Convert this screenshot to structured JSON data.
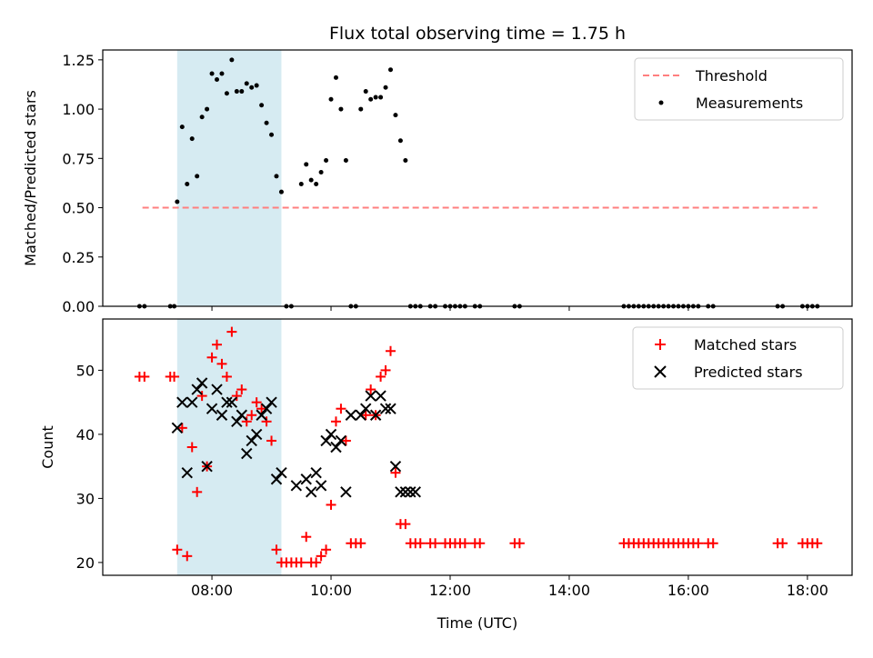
{
  "chart_data": [
    {
      "type": "scatter",
      "title": "Flux total observing time = 1.75 h",
      "xlabel": "",
      "ylabel": "Matched/Predicted stars",
      "xlim": [
        "06:10",
        "18:45"
      ],
      "ylim": [
        0,
        1.3
      ],
      "yticks": [
        "0.00",
        "0.25",
        "0.50",
        "0.75",
        "1.00",
        "1.25"
      ],
      "xticks": [
        "08:00",
        "10:00",
        "12:00",
        "14:00",
        "16:00",
        "18:00"
      ],
      "shaded_region": {
        "start": "07:25",
        "end": "09:10",
        "color": "#add8e6"
      },
      "legend_position": "top-right",
      "threshold": {
        "name": "Threshold",
        "value": 0.5,
        "x_start": "06:50",
        "x_end": "18:10",
        "color": "#ff7f7f"
      },
      "series": [
        {
          "name": "Measurements",
          "color": "#000000",
          "x": [
            "06:47",
            "06:52",
            "07:18",
            "07:22",
            "07:25",
            "07:30",
            "07:35",
            "07:40",
            "07:45",
            "07:50",
            "07:55",
            "08:00",
            "08:05",
            "08:10",
            "08:15",
            "08:20",
            "08:25",
            "08:30",
            "08:35",
            "08:40",
            "08:45",
            "08:50",
            "08:55",
            "09:00",
            "09:05",
            "09:10",
            "09:15",
            "09:20",
            "09:30",
            "09:35",
            "09:40",
            "09:45",
            "09:50",
            "09:55",
            "10:00",
            "10:05",
            "10:10",
            "10:15",
            "10:20",
            "10:25",
            "10:30",
            "10:35",
            "10:40",
            "10:45",
            "10:50",
            "10:55",
            "11:00",
            "11:05",
            "11:10",
            "11:15",
            "11:20",
            "11:25",
            "11:30",
            "11:40",
            "11:45",
            "11:55",
            "12:00",
            "12:05",
            "12:10",
            "12:15",
            "12:25",
            "12:30",
            "13:05",
            "13:10",
            "14:55",
            "15:00",
            "15:05",
            "15:10",
            "15:15",
            "15:20",
            "15:25",
            "15:30",
            "15:35",
            "15:40",
            "15:45",
            "15:50",
            "15:55",
            "16:00",
            "16:05",
            "16:10",
            "16:20",
            "16:25",
            "17:30",
            "17:35",
            "17:55",
            "18:00",
            "18:05",
            "18:10"
          ],
          "y": [
            0,
            0,
            0,
            0,
            0.53,
            0.91,
            0.62,
            0.85,
            0.66,
            0.96,
            1.0,
            1.18,
            1.15,
            1.18,
            1.08,
            1.25,
            1.09,
            1.09,
            1.13,
            1.11,
            1.12,
            1.02,
            0.93,
            0.87,
            0.66,
            0.58,
            0,
            0,
            0.62,
            0.72,
            0.64,
            0.62,
            0.68,
            0.74,
            1.05,
            1.16,
            1.0,
            0.74,
            0,
            0,
            1.0,
            1.09,
            1.05,
            1.06,
            1.06,
            1.11,
            1.2,
            0.97,
            0.84,
            0.74,
            0,
            0,
            0,
            0,
            0,
            0,
            0,
            0,
            0,
            0,
            0,
            0,
            0,
            0,
            0,
            0,
            0,
            0,
            0,
            0,
            0,
            0,
            0,
            0,
            0,
            0,
            0,
            0,
            0,
            0,
            0,
            0,
            0,
            0,
            0,
            0,
            0,
            0
          ]
        }
      ]
    },
    {
      "type": "scatter",
      "title": "",
      "xlabel": "Time (UTC)",
      "ylabel": "Count",
      "xlim": [
        "06:10",
        "18:45"
      ],
      "ylim": [
        18,
        58
      ],
      "yticks": [
        "20",
        "30",
        "40",
        "50"
      ],
      "xticks": [
        "08:00",
        "10:00",
        "12:00",
        "14:00",
        "16:00",
        "18:00"
      ],
      "shaded_region": {
        "start": "07:25",
        "end": "09:10",
        "color": "#add8e6"
      },
      "legend_position": "top-right",
      "series": [
        {
          "name": "Matched stars",
          "marker": "plus",
          "color": "#ff0000",
          "x": [
            "06:47",
            "06:52",
            "07:18",
            "07:22",
            "07:25",
            "07:30",
            "07:35",
            "07:40",
            "07:45",
            "07:50",
            "07:55",
            "08:00",
            "08:05",
            "08:10",
            "08:15",
            "08:20",
            "08:25",
            "08:30",
            "08:35",
            "08:40",
            "08:45",
            "08:50",
            "08:55",
            "09:00",
            "09:05",
            "09:10",
            "09:15",
            "09:20",
            "09:25",
            "09:30",
            "09:35",
            "09:40",
            "09:45",
            "09:50",
            "09:55",
            "10:00",
            "10:05",
            "10:10",
            "10:15",
            "10:20",
            "10:25",
            "10:30",
            "10:35",
            "10:40",
            "10:45",
            "10:50",
            "10:55",
            "11:00",
            "11:05",
            "11:10",
            "11:15",
            "11:20",
            "11:25",
            "11:30",
            "11:40",
            "11:45",
            "11:55",
            "12:00",
            "12:05",
            "12:10",
            "12:15",
            "12:25",
            "12:30",
            "13:05",
            "13:10",
            "14:55",
            "15:00",
            "15:05",
            "15:10",
            "15:15",
            "15:20",
            "15:25",
            "15:30",
            "15:35",
            "15:40",
            "15:45",
            "15:50",
            "15:55",
            "16:00",
            "16:05",
            "16:10",
            "16:20",
            "16:25",
            "17:30",
            "17:35",
            "17:55",
            "18:00",
            "18:05",
            "18:10"
          ],
          "y": [
            49,
            49,
            49,
            49,
            22,
            41,
            21,
            38,
            31,
            46,
            35,
            52,
            54,
            51,
            49,
            56,
            46,
            47,
            42,
            43,
            45,
            44,
            42,
            39,
            22,
            20,
            20,
            20,
            20,
            20,
            24,
            20,
            20,
            21,
            22,
            29,
            42,
            44,
            39,
            23,
            23,
            23,
            43,
            47,
            43,
            49,
            50,
            53,
            34,
            26,
            26,
            23,
            23,
            23,
            23,
            23,
            23,
            23,
            23,
            23,
            23,
            23,
            23,
            23,
            23,
            23,
            23,
            23,
            23,
            23,
            23,
            23,
            23,
            23,
            23,
            23,
            23,
            23,
            23,
            23,
            23,
            23,
            23,
            23,
            23,
            23,
            23,
            23,
            23
          ]
        },
        {
          "name": "Predicted stars",
          "marker": "x",
          "color": "#000000",
          "x": [
            "07:25",
            "07:30",
            "07:35",
            "07:40",
            "07:45",
            "07:50",
            "07:55",
            "08:00",
            "08:05",
            "08:10",
            "08:15",
            "08:20",
            "08:25",
            "08:30",
            "08:35",
            "08:40",
            "08:45",
            "08:50",
            "08:55",
            "09:00",
            "09:05",
            "09:10",
            "09:25",
            "09:35",
            "09:40",
            "09:45",
            "09:50",
            "09:55",
            "10:00",
            "10:05",
            "10:10",
            "10:15",
            "10:20",
            "10:30",
            "10:35",
            "10:40",
            "10:45",
            "10:50",
            "10:55",
            "11:00",
            "11:05",
            "11:10",
            "11:15",
            "11:20",
            "11:25"
          ],
          "y": [
            41,
            45,
            34,
            45,
            47,
            48,
            35,
            44,
            47,
            43,
            45,
            45,
            42,
            43,
            37,
            39,
            40,
            43,
            44,
            45,
            33,
            34,
            32,
            33,
            31,
            34,
            32,
            39,
            40,
            38,
            39,
            31,
            43,
            43,
            44,
            46,
            43,
            46,
            44,
            44,
            35,
            31,
            31,
            31,
            31
          ]
        }
      ]
    }
  ]
}
